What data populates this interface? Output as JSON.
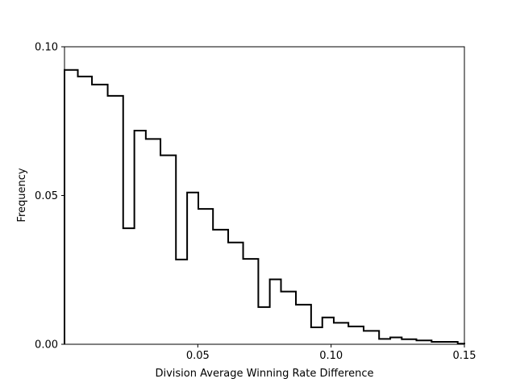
{
  "chart_data": {
    "type": "histogram",
    "xlabel": "Division Average Winning Rate Difference",
    "ylabel": "Frequency",
    "xlim": [
      0.0,
      0.15
    ],
    "ylim": [
      0.0,
      0.1
    ],
    "x_ticks": [
      {
        "value": 0.05,
        "label": "0.05"
      },
      {
        "value": 0.1,
        "label": "0.10"
      },
      {
        "value": 0.15,
        "label": "0.15"
      }
    ],
    "y_ticks": [
      {
        "value": 0.0,
        "label": "0.00"
      },
      {
        "value": 0.05,
        "label": "0.05"
      },
      {
        "value": 0.1,
        "label": "0.10"
      }
    ],
    "grid": false,
    "histtype": "step",
    "line_color": "#000000",
    "bins": [
      {
        "x0": 0.0,
        "x1": 0.005,
        "y": 0.0922
      },
      {
        "x0": 0.005,
        "x1": 0.0103,
        "y": 0.09
      },
      {
        "x0": 0.0103,
        "x1": 0.0162,
        "y": 0.0873
      },
      {
        "x0": 0.0162,
        "x1": 0.022,
        "y": 0.0835
      },
      {
        "x0": 0.022,
        "x1": 0.0262,
        "y": 0.039
      },
      {
        "x0": 0.0262,
        "x1": 0.0305,
        "y": 0.0718
      },
      {
        "x0": 0.0305,
        "x1": 0.036,
        "y": 0.069
      },
      {
        "x0": 0.036,
        "x1": 0.0418,
        "y": 0.0635
      },
      {
        "x0": 0.0418,
        "x1": 0.046,
        "y": 0.0285
      },
      {
        "x0": 0.046,
        "x1": 0.0502,
        "y": 0.051
      },
      {
        "x0": 0.0502,
        "x1": 0.0557,
        "y": 0.0455
      },
      {
        "x0": 0.0557,
        "x1": 0.0614,
        "y": 0.0385
      },
      {
        "x0": 0.0614,
        "x1": 0.067,
        "y": 0.0342
      },
      {
        "x0": 0.067,
        "x1": 0.0727,
        "y": 0.0287
      },
      {
        "x0": 0.0727,
        "x1": 0.077,
        "y": 0.0125
      },
      {
        "x0": 0.077,
        "x1": 0.0812,
        "y": 0.0218
      },
      {
        "x0": 0.0812,
        "x1": 0.0868,
        "y": 0.0177
      },
      {
        "x0": 0.0868,
        "x1": 0.0925,
        "y": 0.0133
      },
      {
        "x0": 0.0925,
        "x1": 0.0967,
        "y": 0.0057
      },
      {
        "x0": 0.0967,
        "x1": 0.101,
        "y": 0.009
      },
      {
        "x0": 0.101,
        "x1": 0.1065,
        "y": 0.0072
      },
      {
        "x0": 0.1065,
        "x1": 0.1122,
        "y": 0.006
      },
      {
        "x0": 0.1122,
        "x1": 0.118,
        "y": 0.0045
      },
      {
        "x0": 0.118,
        "x1": 0.1222,
        "y": 0.0018
      },
      {
        "x0": 0.1222,
        "x1": 0.1265,
        "y": 0.0023
      },
      {
        "x0": 0.1265,
        "x1": 0.132,
        "y": 0.0017
      },
      {
        "x0": 0.132,
        "x1": 0.1377,
        "y": 0.0013
      },
      {
        "x0": 0.1377,
        "x1": 0.1475,
        "y": 0.0008
      },
      {
        "x0": 0.1475,
        "x1": 0.15,
        "y": 0.0002
      }
    ]
  }
}
